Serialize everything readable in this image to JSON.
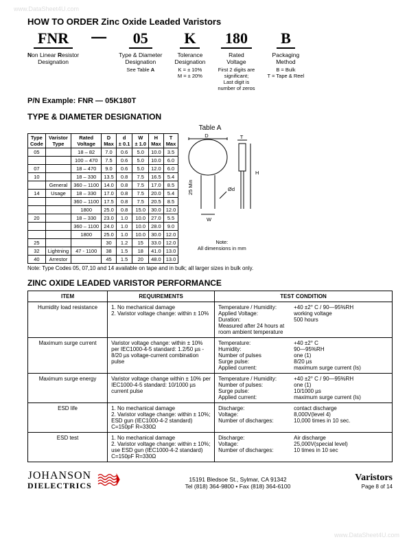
{
  "watermark": "www.DataSheet4U.com",
  "title": "HOW TO ORDER Zinc Oxide Leaded Varistors",
  "order": {
    "cols": [
      {
        "big": "FNR",
        "label": "Non Linear Resistor\nDesignation",
        "sub": ""
      },
      {
        "big": "05",
        "label": "Type & Diameter\nDesignation",
        "sub": "See Table A"
      },
      {
        "big": "K",
        "label": "Tolerance\nDesignation",
        "sub": "K = ± 10%\nM = ± 20%"
      },
      {
        "big": "180",
        "label": "Rated\nVoltage",
        "sub": "First 2 digits are\nsignificant;\nLast digit is\nnumber of zeros"
      },
      {
        "big": "B",
        "label": "Packaging\nMethod",
        "sub": "B = Bulk\nT = Tape & Reel"
      }
    ],
    "dash": "—"
  },
  "pn_example_label": "P/N Example:  FNR — 05K180T",
  "typediam_hdr": "TYPE & DIAMETER DESIGNATION",
  "tableA_label": "Table A",
  "tableA": {
    "head": [
      "Type\nCode",
      "Varistor\nType",
      "Rated\nVoltage",
      "D\nMax",
      "d\n± 0.1",
      "W\n± 1.0",
      "H\nMax",
      "T\nMax"
    ],
    "rows": [
      [
        "05",
        "",
        "18 – 82",
        "7.0",
        "0.6",
        "5.0",
        "10.0",
        "3.5"
      ],
      [
        "",
        "",
        "100 – 470",
        "7.5",
        "0.6",
        "5.0",
        "10.0",
        "6.0"
      ],
      [
        "07",
        "",
        "18 – 470",
        "9.0",
        "0.6",
        "5.0",
        "12.0",
        "6.0"
      ],
      [
        "10",
        "",
        "18 – 330",
        "13.5",
        "0.8",
        "7.5",
        "16.5",
        "5.4"
      ],
      [
        "",
        "General",
        "360 – 1100",
        "14.0",
        "0.8",
        "7.5",
        "17.0",
        "8.5"
      ],
      [
        "14",
        "Usage",
        "18 – 330",
        "17.0",
        "0.8",
        "7.5",
        "20.0",
        "5.4"
      ],
      [
        "",
        "",
        "360 – 1100",
        "17.5",
        "0.8",
        "7.5",
        "20.5",
        "8.5"
      ],
      [
        "",
        "",
        "1800",
        "25.0",
        "0.8",
        "15.0",
        "30.0",
        "12.0"
      ],
      [
        "20",
        "",
        "18 – 330",
        "23.0",
        "1.0",
        "10.0",
        "27.0",
        "5.5"
      ],
      [
        "",
        "",
        "360 – 1100",
        "24.0",
        "1.0",
        "10.0",
        "28.0",
        "9.0"
      ],
      [
        "",
        "",
        "1800",
        "25.0",
        "1.0",
        "10.0",
        "30.0",
        "12.0"
      ],
      [
        "25",
        "",
        "",
        "30",
        "1.2",
        "15",
        "33.0",
        "12.0"
      ],
      [
        "32",
        "Lightning",
        "47 - 1100",
        "38",
        "1.5",
        "18",
        "41.0",
        "13.0"
      ],
      [
        "40",
        "Arrestor",
        "",
        "45",
        "1.5",
        "20",
        "48.0",
        "13.0"
      ]
    ],
    "diagram_note": "Note:\nAll dimensions in mm"
  },
  "tableA_note": "Note:    Type Codes 05, 07,10 and 14 available on tape and in bulk; all larger sizes in bulk only.",
  "perf_hdr": "ZINC OXIDE LEADED VARISTOR PERFORMANCE",
  "perf": {
    "head": [
      "ITEM",
      "REQUIREMENTS",
      "TEST CONDITION"
    ],
    "rows": [
      {
        "item": "Humidity load resistance",
        "req": "1. No mechanical damage\n2. Varistor voltage change: within ± 10%",
        "cond": [
          [
            "Temperature / Humidity:",
            "+40 ±2° C / 90—95%RH"
          ],
          [
            "Applied Voltage:",
            "working voltage"
          ],
          [
            "Duration:",
            "500 hours"
          ],
          [
            "Measured after 24 hours at room ambient temperature",
            ""
          ]
        ]
      },
      {
        "item": "Maximum surge current",
        "req": "Varistor voltage change: within ± 10% per IEC1000-4-5 standard: 1.2/50 µs - 8/20 µs voltage-current combination pulse",
        "cond": [
          [
            "Temperature:",
            "+40 ±2° C"
          ],
          [
            "Humidity:",
            "90—95%RH"
          ],
          [
            "Number of pulses",
            "one (1)"
          ],
          [
            "Surge pulse:",
            "8/20 µs"
          ],
          [
            "Applied current:",
            "maximum surge current (Is)"
          ]
        ]
      },
      {
        "item": "Maximum surge energy",
        "req": "Varistor voltage change within ± 10% per IEC1000-4-5 standard: 10/1000 µs current pulse",
        "cond": [
          [
            "Temperature / Humidity:",
            "+40 ±2° C / 90—95%RH"
          ],
          [
            "Number of pulses:",
            "one (1)"
          ],
          [
            "Surge pulse:",
            "10/1000 µs"
          ],
          [
            "Applied current:",
            "maximum surge current (Is)"
          ]
        ]
      },
      {
        "item": "ESD life",
        "req": "1. No mechanical damage\n2. Varistor voltage change: within ± 10%; ESD gun (IEC1000-4-2 standard) C=150pF R=330Ω",
        "cond": [
          [
            "Discharge:",
            "contact discharge"
          ],
          [
            "Voltage:",
            "8,000V(level 4)"
          ],
          [
            "Number of discharges:",
            "10,000 times in 10 sec."
          ]
        ]
      },
      {
        "item": "ESD test",
        "req": "1. No mechanical damage\n2. Varistor voltage change: within ± 10%; use ESD gun (IEC1000-4-2 standard) C=150pF R=330Ω",
        "cond": [
          [
            "Discharge:",
            "Air discharge"
          ],
          [
            "Voltage:",
            "25,000V(special level)"
          ],
          [
            "Number of discharges:",
            "10 times in 10 sec"
          ]
        ]
      }
    ]
  },
  "footer": {
    "company": "JOHANSON",
    "company_sub": "DIELECTRICS",
    "addr1": "15191 Bledsoe St., Sylmar, CA 91342",
    "addr2": "Tel (818) 364-9800 • Fax (818) 364-6100",
    "right_title": "Varistors",
    "right_page": "Page 8 of  14"
  },
  "diagram_labels": {
    "D": "D",
    "T": "T",
    "H": "H",
    "d": "Ød",
    "W": "W",
    "min": "25 Min"
  }
}
